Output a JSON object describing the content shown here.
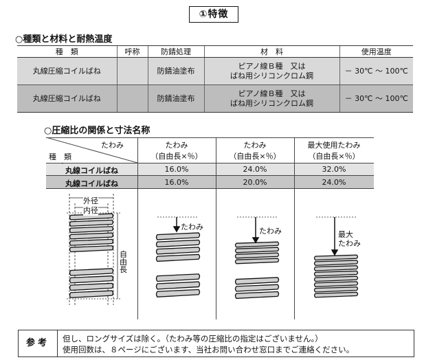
{
  "page": {
    "title": "①特徴",
    "section1_title": "○種類と材料と耐熱温度",
    "section2_title": "○圧縮比の関係と寸法名称"
  },
  "types_table": {
    "headers": [
      "種　類",
      "呼称",
      "防錆処理",
      "材　料",
      "使用温度"
    ],
    "rows": [
      {
        "type": "丸線圧縮コイルばね",
        "name": "",
        "treatment": "防錆油塗布",
        "material_1": "ピアノ線Ｂ種　又は",
        "material_2": "ばね用シリコンクロム鋼",
        "temp": "－ 30℃ ～ 100℃"
      },
      {
        "type": "丸線圧縮コイルばね",
        "name": "",
        "treatment": "防錆油塗布",
        "material_1": "ピアノ線Ｂ種　又は",
        "material_2": "ばね用シリコンクロム鋼",
        "temp": "－ 30℃ ～ 100℃"
      }
    ]
  },
  "compression_table": {
    "corner_top": "たわみ",
    "corner_bottom": "種　類",
    "columns": [
      {
        "line1": "たわみ",
        "line2": "（自由長×％）"
      },
      {
        "line1": "たわみ",
        "line2": "（自由長×％）"
      },
      {
        "line1": "最大使用たわみ",
        "line2": "（自由長×％）"
      }
    ],
    "rows": [
      {
        "marker": "`",
        "label": "丸線コイルばね",
        "values": [
          "16.0%",
          "24.0%",
          "32.0%"
        ]
      },
      {
        "marker": "",
        "label": "丸線コイルばね",
        "values": [
          "16.0%",
          "20.0%",
          "24.0%"
        ]
      }
    ],
    "diagram_labels": {
      "outer_dia": "外径",
      "inner_dia": "内径",
      "free_length": "自由長",
      "deflection": "たわみ",
      "max_deflection_1": "最大",
      "max_deflection_2": "たわみ"
    }
  },
  "note": {
    "label": "参考",
    "line1": "但し、ロングサイズは除く。（たわみ等の圧縮比の指定はございません。）",
    "line2": "使用回数は、８ページにございます、当社お問い合わせ窓口までご連絡ください。"
  }
}
